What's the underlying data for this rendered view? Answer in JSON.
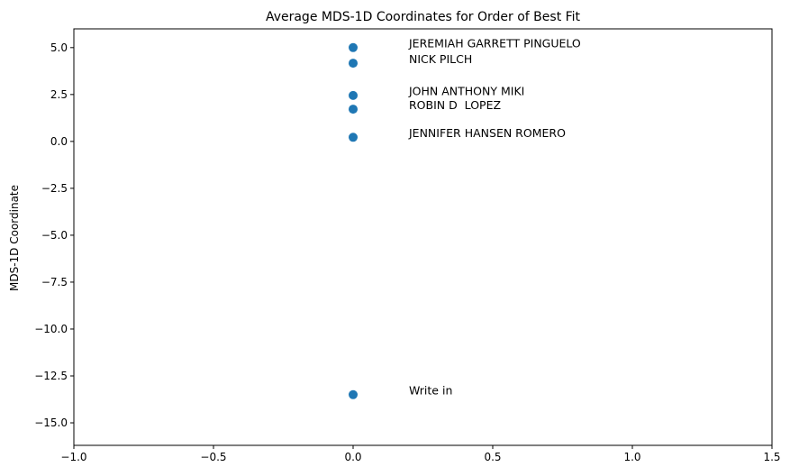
{
  "chart_data": {
    "type": "scatter",
    "title": "Average MDS-1D Coordinates for Order of Best Fit",
    "xlabel": "",
    "ylabel": "MDS-1D Coordinate",
    "xlim": [
      -1.0,
      1.5
    ],
    "ylim": [
      -16.2,
      6.0
    ],
    "xticks": [
      -1.0,
      -0.5,
      0.0,
      0.5,
      1.0,
      1.5
    ],
    "xtick_labels": [
      "−1.0",
      "−0.5",
      "0.0",
      "0.5",
      "1.0",
      "1.5"
    ],
    "yticks": [
      5.0,
      2.5,
      0.0,
      -2.5,
      -5.0,
      -7.5,
      -10.0,
      -12.5,
      -15.0
    ],
    "ytick_labels": [
      "5.0",
      "2.5",
      "0.0",
      "−2.5",
      "−5.0",
      "−7.5",
      "−10.0",
      "−12.5",
      "−15.0"
    ],
    "grid": false,
    "marker_color": "#1f77b4",
    "points": [
      {
        "x": 0.0,
        "y": 5.0,
        "label": "JEREMIAH GARRETT PINGUELO",
        "label_x": 0.2,
        "label_y": 5.2
      },
      {
        "x": 0.0,
        "y": 4.17,
        "label": "NICK PILCH",
        "label_x": 0.2,
        "label_y": 4.37
      },
      {
        "x": 0.0,
        "y": 2.45,
        "label": "JOHN ANTHONY MIKI",
        "label_x": 0.2,
        "label_y": 2.65
      },
      {
        "x": 0.0,
        "y": 1.72,
        "label": "ROBIN D  LOPEZ",
        "label_x": 0.2,
        "label_y": 1.92
      },
      {
        "x": 0.0,
        "y": 0.22,
        "label": "JENNIFER HANSEN ROMERO",
        "label_x": 0.2,
        "label_y": 0.42
      },
      {
        "x": 0.0,
        "y": -13.5,
        "label": "Write in",
        "label_x": 0.2,
        "label_y": -13.3
      }
    ]
  }
}
